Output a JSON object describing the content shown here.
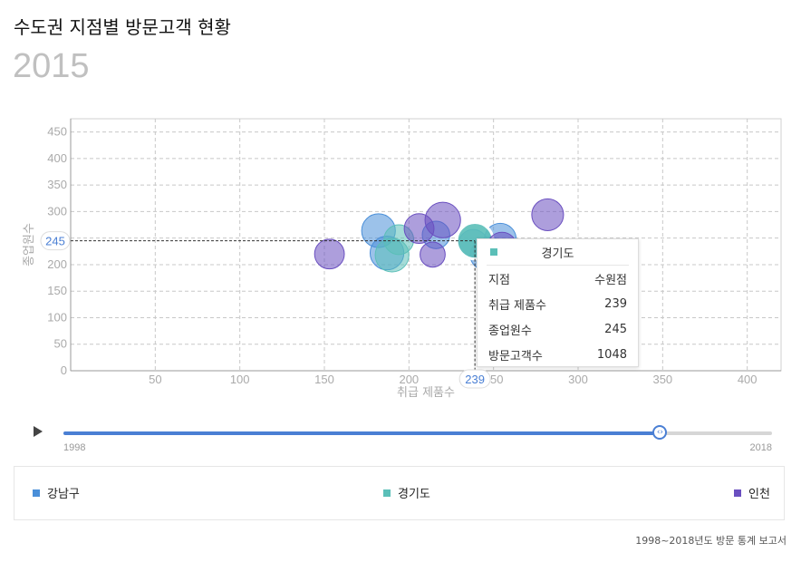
{
  "title": "수도권 지점별 방문고객 현황",
  "year": "2015",
  "chart_data": {
    "type": "scatter",
    "subtype": "bubble",
    "xlabel": "취급 제품수",
    "ylabel": "종업원수",
    "xlim": [
      0,
      420
    ],
    "ylim": [
      0,
      475
    ],
    "xticks": [
      50,
      100,
      150,
      200,
      250,
      300,
      350,
      400
    ],
    "yticks": [
      0,
      50,
      100,
      150,
      200,
      250,
      300,
      350,
      400,
      450
    ],
    "grid": true,
    "series": [
      {
        "name": "강남구",
        "color": "#4a8fd9",
        "points": [
          {
            "x": 182,
            "y": 264,
            "size": 900
          },
          {
            "x": 187,
            "y": 222,
            "size": 900
          },
          {
            "x": 216,
            "y": 256,
            "size": 600
          },
          {
            "x": 238,
            "y": 238,
            "size": 700
          },
          {
            "x": 245,
            "y": 218,
            "size": 700
          },
          {
            "x": 248,
            "y": 226,
            "size": 600
          },
          {
            "x": 254,
            "y": 248,
            "size": 800
          }
        ]
      },
      {
        "name": "경기도",
        "color": "#5bbfb8",
        "points": [
          {
            "x": 190,
            "y": 218,
            "size": 900
          },
          {
            "x": 194,
            "y": 247,
            "size": 700
          },
          {
            "x": 239,
            "y": 245,
            "size": 1048
          }
        ]
      },
      {
        "name": "인천",
        "color": "#6a4fc0",
        "points": [
          {
            "x": 153,
            "y": 220,
            "size": 700
          },
          {
            "x": 206,
            "y": 268,
            "size": 700
          },
          {
            "x": 214,
            "y": 219,
            "size": 500
          },
          {
            "x": 220,
            "y": 284,
            "size": 1000
          },
          {
            "x": 255,
            "y": 233,
            "size": 700
          },
          {
            "x": 282,
            "y": 294,
            "size": 800
          }
        ]
      }
    ],
    "highlight": {
      "x_marker": "239",
      "y_marker": "245"
    }
  },
  "tooltip": {
    "title": "경기도",
    "color": "#5bbfb8",
    "rows": [
      {
        "label": "지점",
        "value": "수원점"
      },
      {
        "label": "취급 제품수",
        "value": "239"
      },
      {
        "label": "종업원수",
        "value": "245"
      },
      {
        "label": "방문고객수",
        "value": "1048"
      }
    ]
  },
  "timeline": {
    "start_label": "1998",
    "end_label": "2018",
    "progress": 0.842,
    "handle_glyph": "‹›"
  },
  "legend": [
    {
      "label": "강남구",
      "color": "#4a8fd9"
    },
    {
      "label": "경기도",
      "color": "#5bbfb8"
    },
    {
      "label": "인천",
      "color": "#6a4fc0"
    }
  ],
  "source": "1998~2018년도 방문 통계 보고서"
}
